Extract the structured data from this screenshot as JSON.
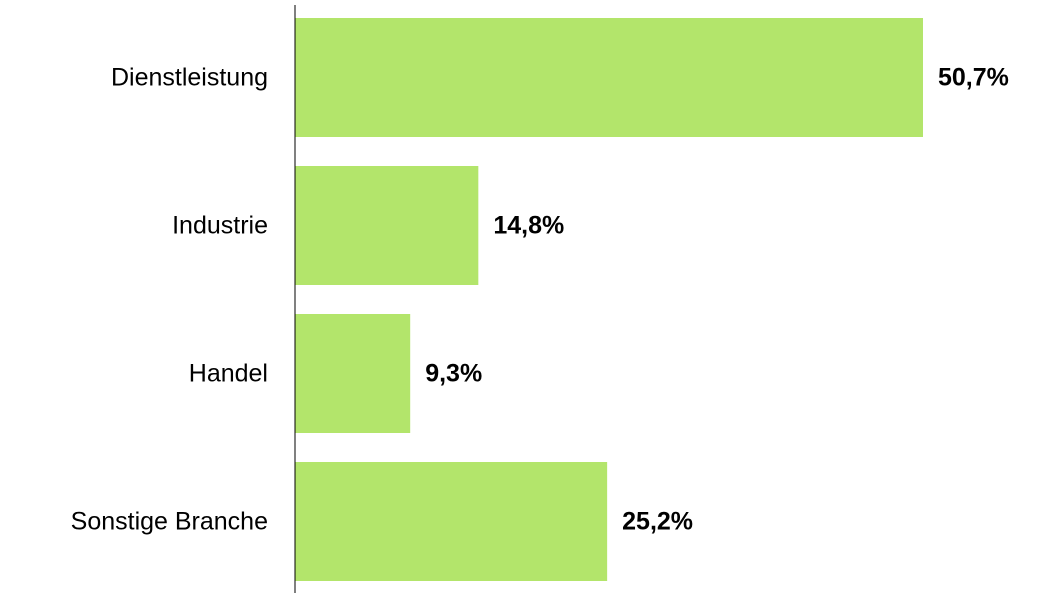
{
  "chart_data": {
    "type": "bar",
    "orientation": "horizontal",
    "categories": [
      "Dienstleistung",
      "Industrie",
      "Handel",
      "Sonstige Branche"
    ],
    "values": [
      50.7,
      14.8,
      9.3,
      25.2
    ],
    "value_labels": [
      "50,7%",
      "14,8%",
      "9,3%",
      "25,2%"
    ],
    "title": "",
    "xlabel": "",
    "ylabel": "",
    "xlim": [
      0,
      50.7
    ],
    "grid": false,
    "legend": "none",
    "bar_color": "#b3e56b",
    "axis_color": "#000000"
  }
}
